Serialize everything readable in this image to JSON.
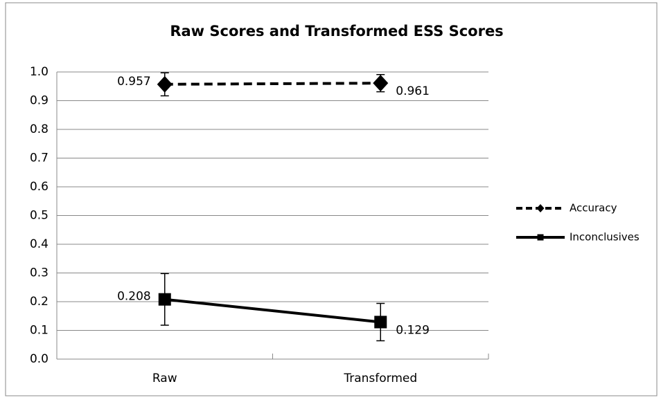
{
  "chart_data": {
    "type": "line",
    "title": "Raw Scores and Transformed ESS Scores",
    "categories": [
      "Raw",
      "Transformed"
    ],
    "series": [
      {
        "name": "Accuracy",
        "color": "#000000",
        "line_style": "dashed",
        "marker": "diamond",
        "values": [
          0.957,
          0.961
        ],
        "errors": [
          0.04,
          0.03
        ]
      },
      {
        "name": "Inconclusives",
        "color": "#000000",
        "line_style": "solid",
        "marker": "square",
        "values": [
          0.208,
          0.129
        ],
        "errors": [
          0.09,
          0.065
        ]
      }
    ],
    "ylim": [
      0,
      1
    ],
    "yticks": [
      {
        "value": 0,
        "label": "0.0"
      },
      0.1,
      0.2,
      0.3,
      0.4,
      0.5,
      0.6,
      0.7,
      0.8,
      0.9,
      {
        "value": 1,
        "label": "1.0"
      }
    ],
    "grid": true,
    "legend": "right",
    "data_labels": true
  }
}
